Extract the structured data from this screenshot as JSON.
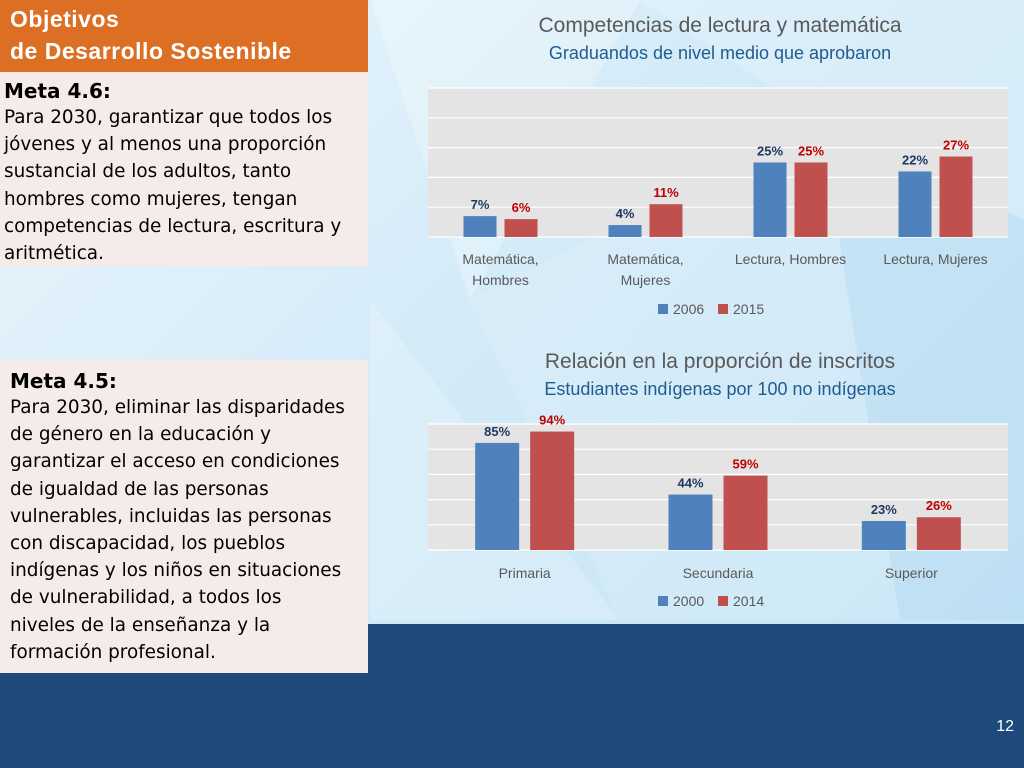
{
  "header": {
    "title_line1": "Objetivos",
    "title_line2": "de Desarrollo Sostenible"
  },
  "meta_46": {
    "title": "Meta 4.6:",
    "lines": [
      "Para 2030, garantizar que todos los",
      "jóvenes y al menos una proporción",
      "sustancial de los adultos, tanto",
      "hombres como mujeres, tengan",
      "competencias de lectura, escritura y",
      "aritmética."
    ]
  },
  "meta_45": {
    "title": "Meta 4.5:",
    "lines": [
      "Para 2030, eliminar las disparidades",
      "de género en la educación y",
      "garantizar el acceso en condiciones",
      "de igualdad de las personas",
      "vulnerables, incluidas las personas",
      "con discapacidad, los pueblos",
      "indígenas y los niños en situaciones",
      "de vulnerabilidad, a todos los",
      "niveles de la enseñanza y la",
      "formación profesional."
    ]
  },
  "page_number": "12",
  "colors": {
    "series_a": "#4f81bd",
    "series_b": "#c0504d",
    "label_a": "#1f3864",
    "label_b": "#c00000",
    "header_bg": "#dc6f24",
    "footer_bg": "#1e4a7b"
  },
  "chart_data": [
    {
      "type": "bar",
      "title": "Competencias de lectura y matemática",
      "subtitle": "Graduandos de nivel medio que aprobaron",
      "categories": [
        [
          "Matemática,",
          "Hombres"
        ],
        [
          "Matemática,",
          "Mujeres"
        ],
        [
          "Lectura, Hombres"
        ],
        [
          "Lectura, Mujeres"
        ]
      ],
      "series": [
        {
          "name": "2006",
          "values": [
            7,
            4,
            25,
            22
          ],
          "labels": [
            "7%",
            "4%",
            "25%",
            "22%"
          ]
        },
        {
          "name": "2015",
          "values": [
            6,
            11,
            25,
            27
          ],
          "labels": [
            "6%",
            "11%",
            "25%",
            "27%"
          ]
        }
      ],
      "ylim": [
        0,
        50
      ],
      "grid": true,
      "legend": "bottom"
    },
    {
      "type": "bar",
      "title": "Relación en la proporción de inscritos",
      "subtitle": "Estudiantes indígenas por 100 no indígenas",
      "categories": [
        [
          "Primaria"
        ],
        [
          "Secundaria"
        ],
        [
          "Superior"
        ]
      ],
      "series": [
        {
          "name": "2000",
          "values": [
            85,
            44,
            23
          ],
          "labels": [
            "85%",
            "44%",
            "23%"
          ]
        },
        {
          "name": "2014",
          "values": [
            94,
            59,
            26
          ],
          "labels": [
            "94%",
            "59%",
            "26%"
          ]
        }
      ],
      "ylim": [
        0,
        100
      ],
      "grid": true,
      "legend": "bottom"
    }
  ]
}
